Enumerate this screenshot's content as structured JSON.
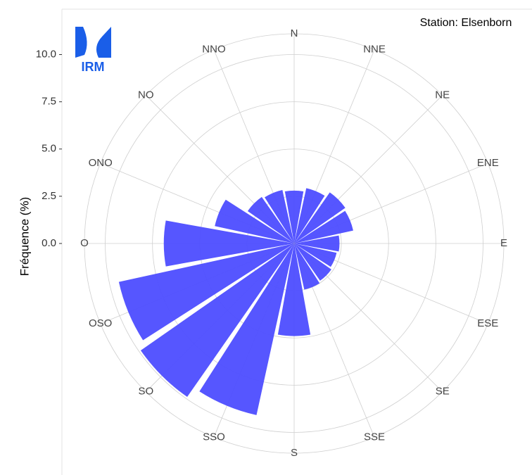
{
  "chart_data": {
    "type": "windrose",
    "station": "Station: Elsenborn",
    "y_label": "Fréquence (%)",
    "logo_text": "IRM",
    "categories": [
      "N",
      "NNE",
      "NE",
      "ENE",
      "E",
      "ESE",
      "SE",
      "SSE",
      "S",
      "SSO",
      "SO",
      "OSO",
      "O",
      "ONO",
      "NO",
      "NNO"
    ],
    "values": [
      2.8,
      3.0,
      3.3,
      3.2,
      2.4,
      2.3,
      2.4,
      2.5,
      4.9,
      9.3,
      9.9,
      9.5,
      6.9,
      4.3,
      3.0,
      2.9
    ],
    "color": "#4d4dff",
    "ylim": [
      0,
      11.1
    ],
    "yticks": [
      {
        "value": 0,
        "label": "0.0"
      },
      2.5,
      {
        "value": 5,
        "label": "5.0"
      },
      7.5,
      {
        "value": 10,
        "label": "10.0"
      }
    ],
    "grid": true
  }
}
